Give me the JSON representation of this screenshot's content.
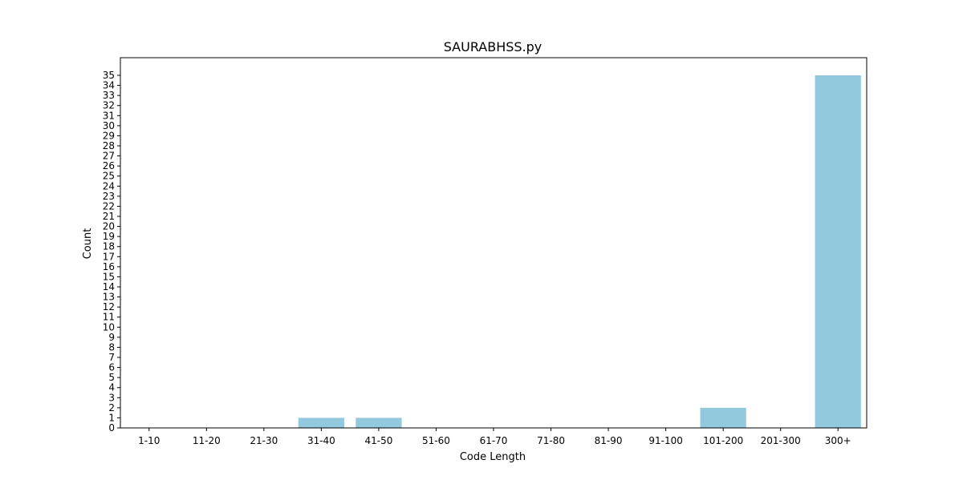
{
  "chart_data": {
    "type": "bar",
    "title": "SAURABHSS.py",
    "xlabel": "Code Length",
    "ylabel": "Count",
    "categories": [
      "1-10",
      "11-20",
      "21-30",
      "31-40",
      "41-50",
      "51-60",
      "61-70",
      "71-80",
      "81-90",
      "91-100",
      "101-200",
      "201-300",
      "300+"
    ],
    "values": [
      0,
      0,
      0,
      1,
      1,
      0,
      0,
      0,
      0,
      0,
      2,
      0,
      35
    ],
    "ylim": [
      0,
      36.75
    ],
    "yticks": [
      0,
      1,
      2,
      3,
      4,
      5,
      6,
      7,
      8,
      9,
      10,
      11,
      12,
      13,
      14,
      15,
      16,
      17,
      18,
      19,
      20,
      21,
      22,
      23,
      24,
      25,
      26,
      27,
      28,
      29,
      30,
      31,
      32,
      33,
      34,
      35
    ],
    "grid": false,
    "bar_color": "#92c9dd",
    "axis_color": "#000000"
  }
}
